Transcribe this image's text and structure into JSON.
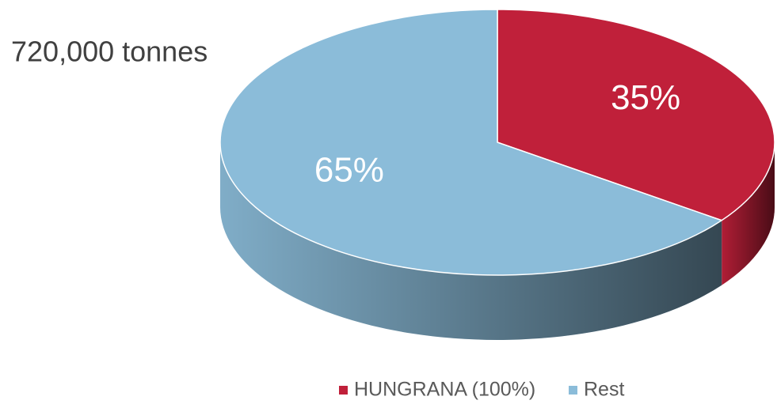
{
  "chart_data": {
    "type": "pie",
    "title": "720,000 tonnes",
    "categories": [
      "HUNGRANA (100%)",
      "Rest"
    ],
    "values": [
      35,
      65
    ],
    "value_labels": [
      "35%",
      "65%"
    ],
    "colors": [
      "#c0203a",
      "#8bbcd9"
    ],
    "legend": "bottom"
  }
}
